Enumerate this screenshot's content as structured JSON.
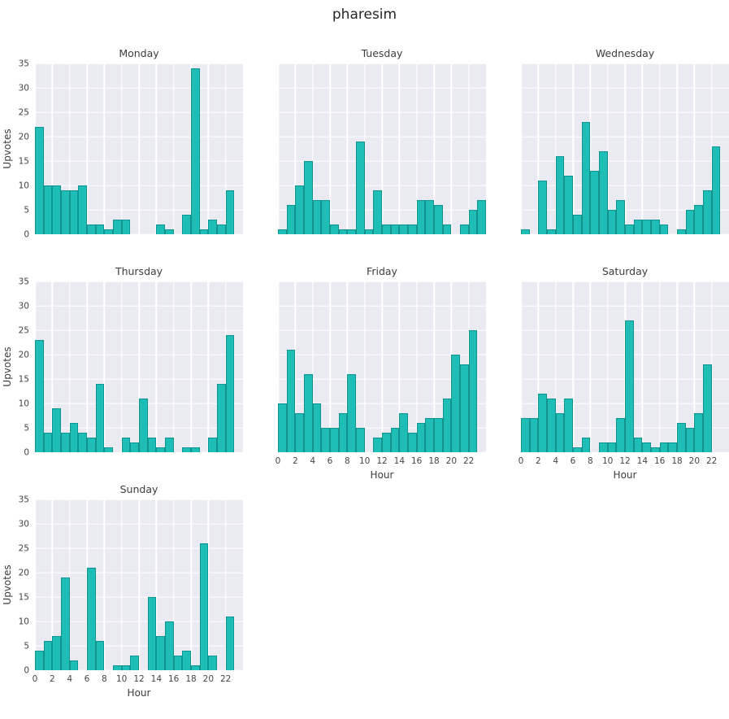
{
  "page_title": "pharesim",
  "style": {
    "plot_bg": "#eaeaf2",
    "grid_color": "#ffffff",
    "bar_fill": "#1ebeb7",
    "bar_edge": "#11948d"
  },
  "axes": {
    "ylabel": "Upvotes",
    "xlabel": "Hour",
    "ylim": [
      0,
      35
    ],
    "yticks": [
      0,
      5,
      10,
      15,
      20,
      25,
      30,
      35
    ],
    "xticks": [
      0,
      2,
      4,
      6,
      8,
      10,
      12,
      14,
      16,
      18,
      20,
      22
    ],
    "bins": 24
  },
  "chart_data": [
    {
      "type": "bar",
      "title": "Monday",
      "show_yticks": true,
      "show_ylabel": true,
      "show_xticks": false,
      "show_xlabel": false,
      "values": [
        22,
        10,
        10,
        9,
        9,
        10,
        2,
        2,
        1,
        3,
        3,
        0,
        0,
        0,
        2,
        1,
        0,
        4,
        34,
        1,
        3,
        2,
        9,
        0
      ]
    },
    {
      "type": "bar",
      "title": "Tuesday",
      "show_yticks": false,
      "show_ylabel": false,
      "show_xticks": false,
      "show_xlabel": false,
      "values": [
        1,
        6,
        10,
        15,
        7,
        7,
        2,
        1,
        1,
        19,
        1,
        9,
        2,
        2,
        2,
        2,
        7,
        7,
        6,
        2,
        0,
        2,
        5,
        7
      ]
    },
    {
      "type": "bar",
      "title": "Wednesday",
      "show_yticks": false,
      "show_ylabel": false,
      "show_xticks": false,
      "show_xlabel": false,
      "values": [
        1,
        0,
        11,
        1,
        16,
        12,
        4,
        23,
        13,
        17,
        5,
        7,
        2,
        3,
        3,
        3,
        2,
        0,
        1,
        5,
        6,
        9,
        18,
        0
      ]
    },
    {
      "type": "bar",
      "title": "Thursday",
      "show_yticks": true,
      "show_ylabel": true,
      "show_xticks": false,
      "show_xlabel": false,
      "values": [
        23,
        4,
        9,
        4,
        6,
        4,
        3,
        14,
        1,
        0,
        3,
        2,
        11,
        3,
        1,
        3,
        0,
        1,
        1,
        0,
        3,
        14,
        24,
        0
      ]
    },
    {
      "type": "bar",
      "title": "Friday",
      "show_yticks": false,
      "show_ylabel": false,
      "show_xticks": true,
      "show_xlabel": true,
      "values": [
        10,
        21,
        8,
        16,
        10,
        5,
        5,
        8,
        16,
        5,
        0,
        3,
        4,
        5,
        8,
        4,
        6,
        7,
        7,
        11,
        20,
        18,
        25,
        0
      ]
    },
    {
      "type": "bar",
      "title": "Saturday",
      "show_yticks": false,
      "show_ylabel": false,
      "show_xticks": true,
      "show_xlabel": true,
      "values": [
        7,
        7,
        12,
        11,
        8,
        11,
        1,
        3,
        0,
        2,
        2,
        7,
        27,
        3,
        2,
        1,
        2,
        2,
        6,
        5,
        8,
        18,
        0,
        0
      ]
    },
    {
      "type": "bar",
      "title": "Sunday",
      "show_yticks": true,
      "show_ylabel": true,
      "show_xticks": true,
      "show_xlabel": true,
      "values": [
        4,
        6,
        7,
        19,
        2,
        0,
        21,
        6,
        0,
        1,
        1,
        3,
        0,
        15,
        7,
        10,
        3,
        4,
        1,
        26,
        3,
        0,
        11,
        0
      ]
    }
  ]
}
